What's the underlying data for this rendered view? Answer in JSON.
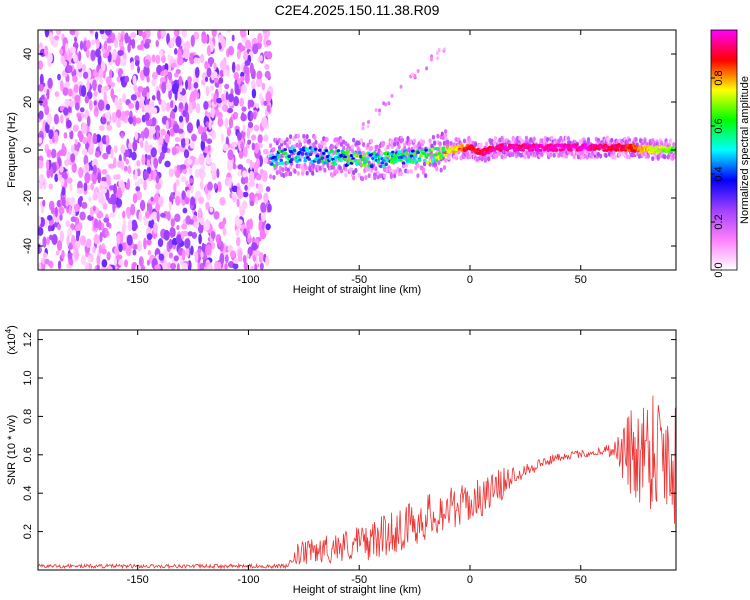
{
  "title": "C2E4.2025.150.11.38.R09",
  "chart_data": [
    {
      "type": "heatmap",
      "xlabel": "Height of straight line (km)",
      "ylabel": "Frequency (Hz)",
      "xlim": [
        -195,
        93
      ],
      "ylim": [
        -50,
        50
      ],
      "xticks": [
        -150,
        -100,
        -50,
        0,
        50
      ],
      "yticks": [
        -40,
        -20,
        0,
        20,
        40
      ],
      "colorbar": {
        "label": "Normalized spectral amplitude",
        "ticks": [
          "0.0",
          "0.2",
          "0.4",
          "0.6",
          "0.8"
        ],
        "range": [
          0,
          1
        ],
        "colors": [
          "#ffffff",
          "#ff80ff",
          "#a040ff",
          "#0000ff",
          "#00ffff",
          "#00ff00",
          "#ffff00",
          "#ff0000",
          "#ff00ff"
        ]
      },
      "noise_region_x": [
        -195,
        -90
      ],
      "ridge": [
        {
          "x": -90,
          "y": -4,
          "a": 0.45
        },
        {
          "x": -80,
          "y": -2,
          "a": 0.5
        },
        {
          "x": -70,
          "y": -2,
          "a": 0.45
        },
        {
          "x": -60,
          "y": -3,
          "a": 0.5
        },
        {
          "x": -50,
          "y": -4,
          "a": 0.55
        },
        {
          "x": -40,
          "y": -4,
          "a": 0.5
        },
        {
          "x": -30,
          "y": -3,
          "a": 0.5
        },
        {
          "x": -20,
          "y": -3,
          "a": 0.55
        },
        {
          "x": -10,
          "y": 0,
          "a": 0.7
        },
        {
          "x": 0,
          "y": 1,
          "a": 0.9
        },
        {
          "x": 5,
          "y": -1,
          "a": 0.9
        },
        {
          "x": 12,
          "y": 1,
          "a": 0.95
        },
        {
          "x": 30,
          "y": 1,
          "a": 0.97
        },
        {
          "x": 50,
          "y": 1,
          "a": 0.97
        },
        {
          "x": 70,
          "y": 1,
          "a": 0.9
        },
        {
          "x": 85,
          "y": 0,
          "a": 0.7
        },
        {
          "x": 93,
          "y": 0,
          "a": 0.65
        }
      ]
    },
    {
      "type": "line",
      "xlabel": "Height of straight line (km)",
      "ylabel": "SNR (10 * v/v)",
      "scale_label": "(x10^4)",
      "scale_label_base": "(x10",
      "scale_label_exp": "4",
      "scale_label_close": ")",
      "xlim": [
        -195,
        93
      ],
      "ylim": [
        0,
        1.25
      ],
      "xticks": [
        -150,
        -100,
        -50,
        0,
        50
      ],
      "yticks": [
        0.2,
        0.4,
        0.6,
        0.8,
        1.0,
        1.2
      ],
      "color": "#ee3333",
      "envelope": [
        {
          "x": -195,
          "mean": 0.02,
          "amp": 0.01
        },
        {
          "x": -82,
          "mean": 0.02,
          "amp": 0.01
        },
        {
          "x": -78,
          "mean": 0.08,
          "amp": 0.06
        },
        {
          "x": -60,
          "mean": 0.12,
          "amp": 0.08
        },
        {
          "x": -45,
          "mean": 0.15,
          "amp": 0.1
        },
        {
          "x": -30,
          "mean": 0.22,
          "amp": 0.12
        },
        {
          "x": -15,
          "mean": 0.3,
          "amp": 0.12
        },
        {
          "x": 0,
          "mean": 0.35,
          "amp": 0.1
        },
        {
          "x": 12,
          "mean": 0.42,
          "amp": 0.1
        },
        {
          "x": 20,
          "mean": 0.5,
          "amp": 0.05
        },
        {
          "x": 40,
          "mean": 0.59,
          "amp": 0.02
        },
        {
          "x": 55,
          "mean": 0.61,
          "amp": 0.02
        },
        {
          "x": 65,
          "mean": 0.63,
          "amp": 0.04
        },
        {
          "x": 72,
          "mean": 0.6,
          "amp": 0.25
        },
        {
          "x": 85,
          "mean": 0.65,
          "amp": 0.35
        },
        {
          "x": 93,
          "mean": 0.55,
          "amp": 0.35
        }
      ]
    }
  ]
}
